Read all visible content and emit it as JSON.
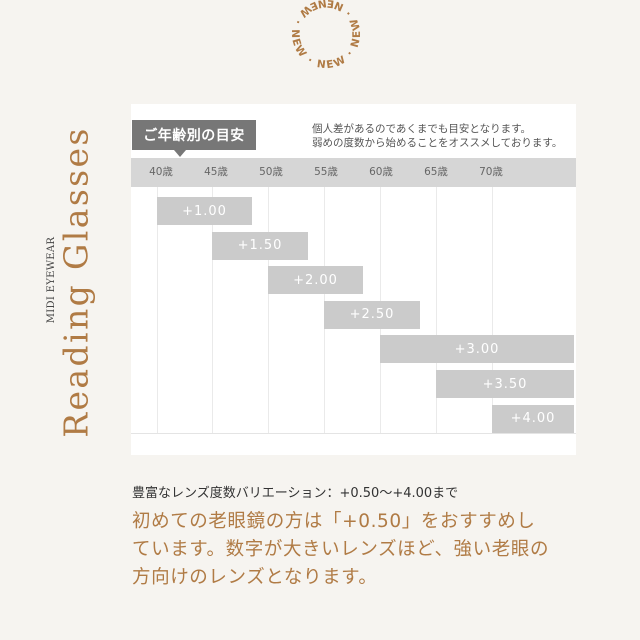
{
  "badge": {
    "text": "NEW · NEW · NEW · NEW · NEW ·"
  },
  "side": {
    "brand": "MIDI EYEWEAR",
    "title": "Reading Glasses"
  },
  "panel": {
    "tag": "ご年齢別の目安",
    "note_line1": "個人差があるのであくまでも目安となります。",
    "note_line2": "弱めの度数から始めることをオススメしております。"
  },
  "ages": [
    "40歳",
    "45歳",
    "50歳",
    "55歳",
    "60歳",
    "65歳",
    "70歳"
  ],
  "powers": [
    "+1.00",
    "+1.50",
    "+2.00",
    "+2.50",
    "+3.00",
    "+3.50",
    "+4.00"
  ],
  "lead": "豊富なレンズ度数バリエーション：+0.50〜+4.00まで",
  "body": {
    "line1": "初めての老眼鏡の方は「+0.50」をおすすめし",
    "line2": "ています。数字が大きいレンズほど、強い老眼の",
    "line3": "方向けのレンズとなります。"
  },
  "colors": {
    "accent": "#b07b45",
    "tag_bg": "#777777",
    "bar": "#cbcbcb",
    "age_strip": "#d6d6d6"
  }
}
